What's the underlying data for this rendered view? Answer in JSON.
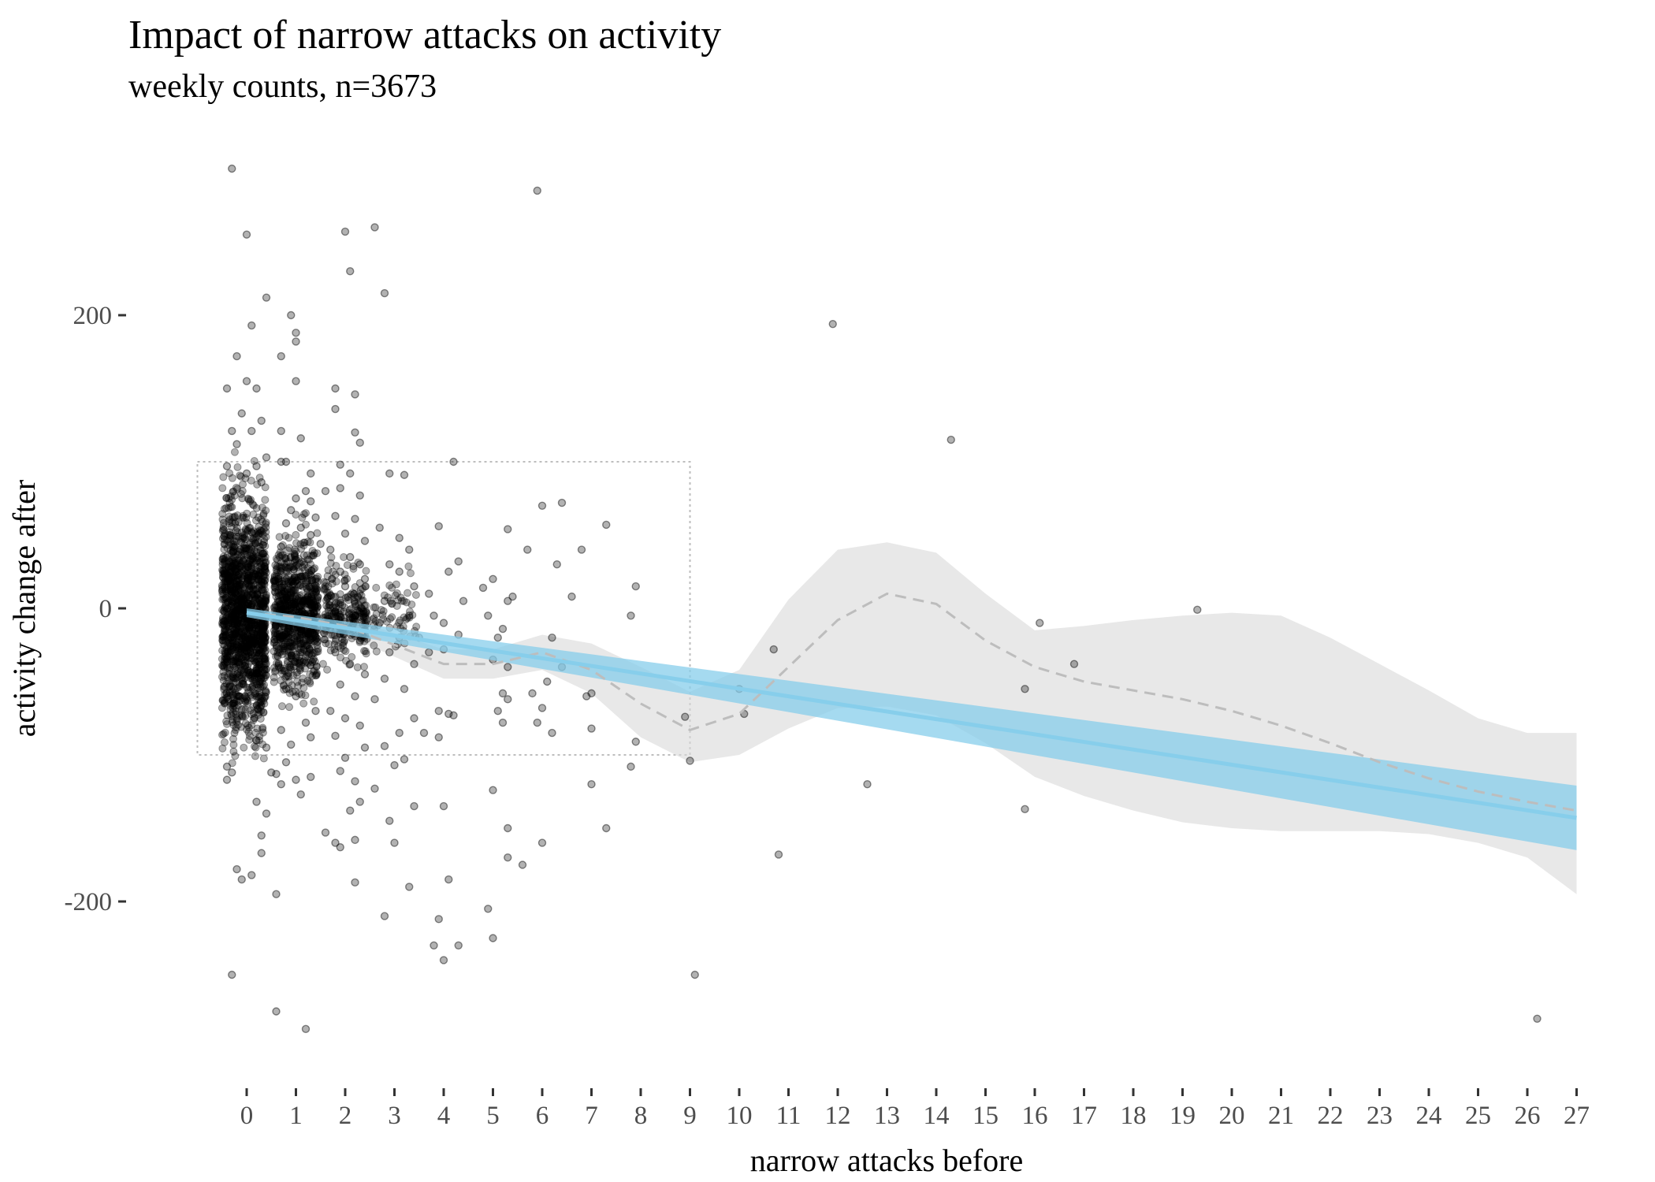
{
  "chart_data": {
    "type": "scatter",
    "title": "Impact of narrow attacks on activity",
    "subtitle": "weekly counts, n=3673",
    "xlabel": "narrow attacks before",
    "ylabel": "activity change after",
    "xlim": [
      0,
      27
    ],
    "ylim": [
      -300,
      300
    ],
    "x_ticks": [
      "0",
      "1",
      "2",
      "3",
      "4",
      "5",
      "6",
      "7",
      "8",
      "9",
      "10",
      "11",
      "12",
      "13",
      "14",
      "15",
      "16",
      "17",
      "18",
      "19",
      "20",
      "21",
      "22",
      "23",
      "24",
      "25",
      "26",
      "27"
    ],
    "y_ticks": [
      {
        "value": 200,
        "label": "200"
      },
      {
        "value": 0,
        "label": "0"
      },
      {
        "value": -200,
        "label": "-200"
      }
    ],
    "grid": false,
    "colors": {
      "points": "#000000",
      "linear_fit": "#87ceeb",
      "linear_band": "#87ceeb",
      "smooth_fit": "#bdbdbd",
      "smooth_band": "#d9d9d9",
      "zoom_box": "#bdbdbd"
    },
    "zoom_box": {
      "x": [
        -1,
        9
      ],
      "y": [
        -100,
        100
      ]
    },
    "points": [
      [
        -0.3,
        300
      ],
      [
        0.0,
        255
      ],
      [
        0.4,
        212
      ],
      [
        0.1,
        193
      ],
      [
        -0.2,
        172
      ],
      [
        0.0,
        155
      ],
      [
        0.2,
        150
      ],
      [
        -0.4,
        150
      ],
      [
        -0.1,
        133
      ],
      [
        0.3,
        128
      ],
      [
        0.1,
        121
      ],
      [
        -0.3,
        121
      ],
      [
        -0.2,
        112
      ],
      [
        0.4,
        103
      ],
      [
        0.2,
        97
      ],
      [
        -0.4,
        97
      ],
      [
        0.0,
        92
      ],
      [
        0.3,
        86
      ],
      [
        -0.2,
        -178
      ],
      [
        0.2,
        -132
      ],
      [
        0.4,
        -140
      ],
      [
        0.3,
        -155
      ],
      [
        0.3,
        -167
      ],
      [
        0.1,
        -182
      ],
      [
        -0.1,
        -185
      ],
      [
        -0.3,
        -250
      ],
      [
        -0.4,
        -108
      ],
      [
        -0.4,
        -117
      ],
      [
        -0.3,
        -112
      ],
      [
        0.5,
        -112
      ],
      [
        0.4,
        -95
      ],
      [
        0.2,
        -90
      ],
      [
        0.9,
        200
      ],
      [
        1.0,
        188
      ],
      [
        1.0,
        182
      ],
      [
        0.7,
        172
      ],
      [
        1.0,
        155
      ],
      [
        0.7,
        121
      ],
      [
        1.1,
        116
      ],
      [
        0.8,
        100
      ],
      [
        0.7,
        100
      ],
      [
        1.3,
        92
      ],
      [
        1.2,
        80
      ],
      [
        1.0,
        75
      ],
      [
        1.3,
        73
      ],
      [
        0.9,
        67
      ],
      [
        1.4,
        62
      ],
      [
        0.8,
        58
      ],
      [
        1.1,
        55
      ],
      [
        1.3,
        50
      ],
      [
        1.5,
        44
      ],
      [
        0.7,
        42
      ],
      [
        0.9,
        35
      ],
      [
        0.6,
        -113
      ],
      [
        0.8,
        -105
      ],
      [
        0.7,
        -120
      ],
      [
        1.0,
        -117
      ],
      [
        1.1,
        -127
      ],
      [
        0.6,
        -195
      ],
      [
        0.6,
        -275
      ],
      [
        1.2,
        -287
      ],
      [
        1.3,
        -115
      ],
      [
        0.9,
        -93
      ],
      [
        1.3,
        -88
      ],
      [
        0.7,
        -83
      ],
      [
        1.2,
        -78
      ],
      [
        1.4,
        -70
      ],
      [
        1.0,
        -60
      ],
      [
        0.8,
        -55
      ],
      [
        2.0,
        257
      ],
      [
        2.1,
        230
      ],
      [
        1.8,
        150
      ],
      [
        2.2,
        146
      ],
      [
        1.8,
        136
      ],
      [
        2.2,
        120
      ],
      [
        2.3,
        113
      ],
      [
        1.9,
        98
      ],
      [
        2.1,
        92
      ],
      [
        1.9,
        82
      ],
      [
        1.6,
        80
      ],
      [
        2.3,
        77
      ],
      [
        1.8,
        63
      ],
      [
        2.2,
        61
      ],
      [
        2.0,
        51
      ],
      [
        2.4,
        46
      ],
      [
        1.7,
        40
      ],
      [
        2.1,
        35
      ],
      [
        2.3,
        30
      ],
      [
        1.9,
        25
      ],
      [
        2.4,
        20
      ],
      [
        2.0,
        15
      ],
      [
        1.7,
        9
      ],
      [
        2.2,
        3
      ],
      [
        1.8,
        -2
      ],
      [
        1.6,
        -153
      ],
      [
        1.8,
        -160
      ],
      [
        1.9,
        -163
      ],
      [
        2.2,
        -158
      ],
      [
        2.2,
        -187
      ],
      [
        2.1,
        -138
      ],
      [
        2.3,
        -132
      ],
      [
        2.2,
        -118
      ],
      [
        1.9,
        -111
      ],
      [
        2.0,
        -102
      ],
      [
        2.4,
        -95
      ],
      [
        1.8,
        -87
      ],
      [
        2.3,
        -80
      ],
      [
        2.0,
        -75
      ],
      [
        1.7,
        -70
      ],
      [
        2.2,
        -60
      ],
      [
        1.9,
        -52
      ],
      [
        2.4,
        -45
      ],
      [
        2.1,
        -38
      ],
      [
        1.8,
        -30
      ],
      [
        2.3,
        -22
      ],
      [
        2.0,
        -15
      ],
      [
        1.7,
        -10
      ],
      [
        2.2,
        -5
      ],
      [
        2.6,
        260
      ],
      [
        2.8,
        215
      ],
      [
        2.9,
        92
      ],
      [
        3.2,
        91
      ],
      [
        3.1,
        48
      ],
      [
        2.7,
        55
      ],
      [
        3.3,
        40
      ],
      [
        2.9,
        30
      ],
      [
        3.1,
        25
      ],
      [
        3.4,
        15
      ],
      [
        2.8,
        5
      ],
      [
        3.3,
        -5
      ],
      [
        2.7,
        -10
      ],
      [
        3.1,
        -20
      ],
      [
        2.9,
        -30
      ],
      [
        3.4,
        -38
      ],
      [
        2.8,
        -48
      ],
      [
        2.8,
        -210
      ],
      [
        3.0,
        -160
      ],
      [
        2.9,
        -145
      ],
      [
        3.3,
        -190
      ],
      [
        3.4,
        -135
      ],
      [
        2.6,
        -123
      ],
      [
        3.0,
        -107
      ],
      [
        3.2,
        -103
      ],
      [
        2.8,
        -94
      ],
      [
        3.1,
        -85
      ],
      [
        3.4,
        -75
      ],
      [
        2.6,
        -62
      ],
      [
        3.2,
        -55
      ],
      [
        4.2,
        100
      ],
      [
        3.9,
        56
      ],
      [
        4.3,
        32
      ],
      [
        4.1,
        25
      ],
      [
        3.7,
        10
      ],
      [
        4.4,
        5
      ],
      [
        3.8,
        -5
      ],
      [
        4.0,
        -10
      ],
      [
        4.3,
        -18
      ],
      [
        4.0,
        -28
      ],
      [
        3.9,
        -70
      ],
      [
        4.1,
        -72
      ],
      [
        4.2,
        -73
      ],
      [
        3.6,
        -85
      ],
      [
        3.9,
        -88
      ],
      [
        4.0,
        -135
      ],
      [
        4.1,
        -185
      ],
      [
        3.9,
        -212
      ],
      [
        3.8,
        -230
      ],
      [
        4.3,
        -230
      ],
      [
        4.0,
        -240
      ],
      [
        3.5,
        -20
      ],
      [
        3.7,
        -30
      ],
      [
        5.3,
        54
      ],
      [
        5.0,
        20
      ],
      [
        4.8,
        14
      ],
      [
        5.4,
        8
      ],
      [
        5.3,
        5
      ],
      [
        4.9,
        -5
      ],
      [
        5.2,
        -14
      ],
      [
        5.1,
        -20
      ],
      [
        5.0,
        -35
      ],
      [
        5.3,
        -40
      ],
      [
        5.2,
        -58
      ],
      [
        5.3,
        -62
      ],
      [
        5.1,
        -70
      ],
      [
        5.2,
        -78
      ],
      [
        5.0,
        -124
      ],
      [
        5.3,
        -150
      ],
      [
        5.3,
        -170
      ],
      [
        4.9,
        -205
      ],
      [
        5.0,
        -225
      ],
      [
        5.9,
        285
      ],
      [
        6.4,
        72
      ],
      [
        6.0,
        70
      ],
      [
        5.7,
        40
      ],
      [
        6.3,
        30
      ],
      [
        6.6,
        8
      ],
      [
        6.2,
        -20
      ],
      [
        6.4,
        -40
      ],
      [
        6.1,
        -50
      ],
      [
        5.8,
        -58
      ],
      [
        6.0,
        -68
      ],
      [
        5.9,
        -78
      ],
      [
        6.2,
        -85
      ],
      [
        6.0,
        -160
      ],
      [
        5.6,
        -175
      ],
      [
        7.3,
        57
      ],
      [
        6.8,
        40
      ],
      [
        7.0,
        -58
      ],
      [
        6.9,
        -60
      ],
      [
        7.0,
        -82
      ],
      [
        7.0,
        -120
      ],
      [
        7.3,
        -150
      ],
      [
        7.9,
        15
      ],
      [
        7.8,
        -5
      ],
      [
        7.9,
        -91
      ],
      [
        7.8,
        -108
      ],
      [
        8.9,
        -74
      ],
      [
        9.0,
        -104
      ],
      [
        9.1,
        -250
      ],
      [
        10.0,
        -55
      ],
      [
        10.1,
        -72
      ],
      [
        10.7,
        -28
      ],
      [
        10.8,
        -168
      ],
      [
        11.9,
        194
      ],
      [
        12.6,
        -120
      ],
      [
        14.3,
        115
      ],
      [
        15.8,
        -55
      ],
      [
        16.1,
        -10
      ],
      [
        15.8,
        -137
      ],
      [
        16.8,
        -38
      ],
      [
        19.3,
        -1
      ],
      [
        26.2,
        -280
      ]
    ],
    "dense_clusters": [
      {
        "x_center": -0.05,
        "x_spread": 0.45,
        "y_center": -5,
        "y_spread": 38,
        "count": 1500
      },
      {
        "x_center": 1.0,
        "x_spread": 0.45,
        "y_center": -4,
        "y_spread": 24,
        "count": 800
      },
      {
        "x_center": 2.0,
        "x_spread": 0.45,
        "y_center": -5,
        "y_spread": 16,
        "count": 250
      },
      {
        "x_center": 3.0,
        "x_spread": 0.45,
        "y_center": -4,
        "y_spread": 12,
        "count": 60
      }
    ],
    "linear_fit": {
      "x": [
        0,
        27
      ],
      "y": [
        -3,
        -143
      ],
      "band_lower": [
        -6,
        -165
      ],
      "band_upper": [
        0,
        -121
      ]
    },
    "smooth_fit": {
      "x": [
        0,
        1,
        2,
        3,
        4,
        5,
        6,
        7,
        8,
        9,
        10,
        11,
        12,
        13,
        14,
        15,
        16,
        17,
        18,
        19,
        20,
        21,
        22,
        23,
        24,
        25,
        26,
        27
      ],
      "y": [
        -3,
        -6,
        -12,
        -25,
        -38,
        -38,
        -30,
        -42,
        -65,
        -83,
        -72,
        -40,
        -8,
        10,
        3,
        -22,
        -40,
        -50,
        -56,
        -62,
        -70,
        -80,
        -92,
        -105,
        -116,
        -125,
        -132,
        -138
      ],
      "lower": [
        -10,
        -12,
        -18,
        -33,
        -48,
        -48,
        -42,
        -58,
        -88,
        -105,
        -100,
        -82,
        -68,
        -67,
        -73,
        -92,
        -115,
        -128,
        -138,
        -146,
        -150,
        -152,
        -152,
        -152,
        -154,
        -160,
        -170,
        -195
      ],
      "upper": [
        4,
        0,
        -6,
        -17,
        -28,
        -28,
        -18,
        -24,
        -40,
        -57,
        -42,
        6,
        40,
        45,
        38,
        10,
        -15,
        -12,
        -8,
        -5,
        -3,
        -5,
        -20,
        -38,
        -56,
        -75,
        -85,
        -85
      ]
    }
  }
}
